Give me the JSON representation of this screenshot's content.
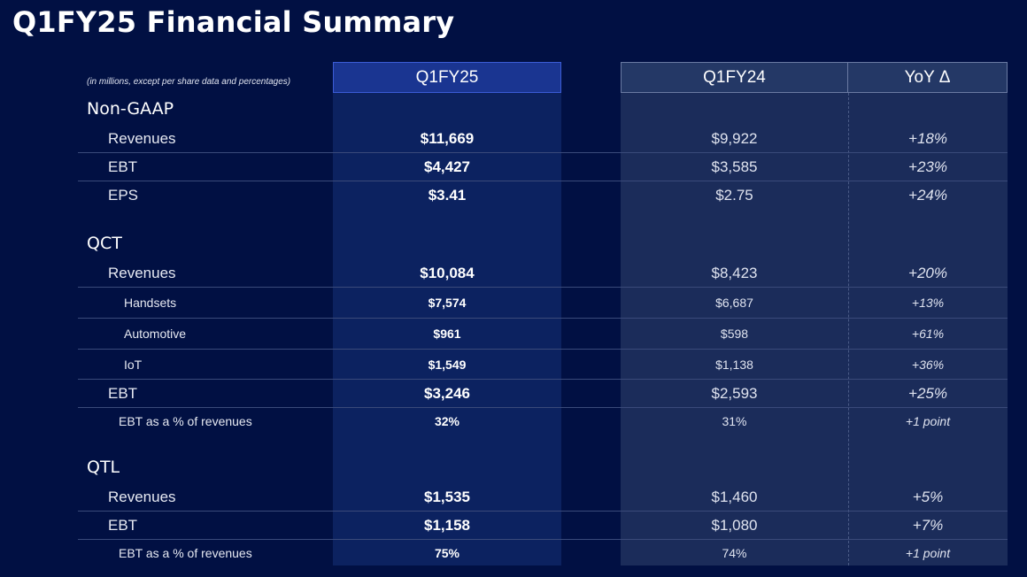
{
  "title": "Q1FY25 Financial Summary",
  "table": {
    "note": "(in millions, except per share data and percentages)",
    "columns": [
      "Q1FY25",
      "Q1FY24",
      "YoY Δ"
    ],
    "sections": [
      {
        "name": "Non-GAAP",
        "rows": [
          {
            "label": "Revenues",
            "q1fy25": "$11,669",
            "q1fy24": "$9,922",
            "yoy": "+18%"
          },
          {
            "label": "EBT",
            "q1fy25": "$4,427",
            "q1fy24": "$3,585",
            "yoy": "+23%"
          },
          {
            "label": "EPS",
            "q1fy25": "$3.41",
            "q1fy24": "$2.75",
            "yoy": "+24%"
          }
        ]
      },
      {
        "name": "QCT",
        "rows": [
          {
            "label": "Revenues",
            "q1fy25": "$10,084",
            "q1fy24": "$8,423",
            "yoy": "+20%"
          },
          {
            "label": "Handsets",
            "q1fy25": "$7,574",
            "q1fy24": "$6,687",
            "yoy": "+13%"
          },
          {
            "label": "Automotive",
            "q1fy25": "$961",
            "q1fy24": "$598",
            "yoy": "+61%"
          },
          {
            "label": "IoT",
            "q1fy25": "$1,549",
            "q1fy24": "$1,138",
            "yoy": "+36%"
          },
          {
            "label": "EBT",
            "q1fy25": "$3,246",
            "q1fy24": "$2,593",
            "yoy": "+25%"
          },
          {
            "label": "EBT as a % of revenues",
            "q1fy25": "32%",
            "q1fy24": "31%",
            "yoy": "+1 point"
          }
        ]
      },
      {
        "name": "QTL",
        "rows": [
          {
            "label": "Revenues",
            "q1fy25": "$1,535",
            "q1fy24": "$1,460",
            "yoy": "+5%"
          },
          {
            "label": "EBT",
            "q1fy25": "$1,158",
            "q1fy24": "$1,080",
            "yoy": "+7%"
          },
          {
            "label": "EBT as a % of revenues",
            "q1fy25": "75%",
            "q1fy24": "74%",
            "yoy": "+1 point"
          }
        ]
      }
    ]
  }
}
